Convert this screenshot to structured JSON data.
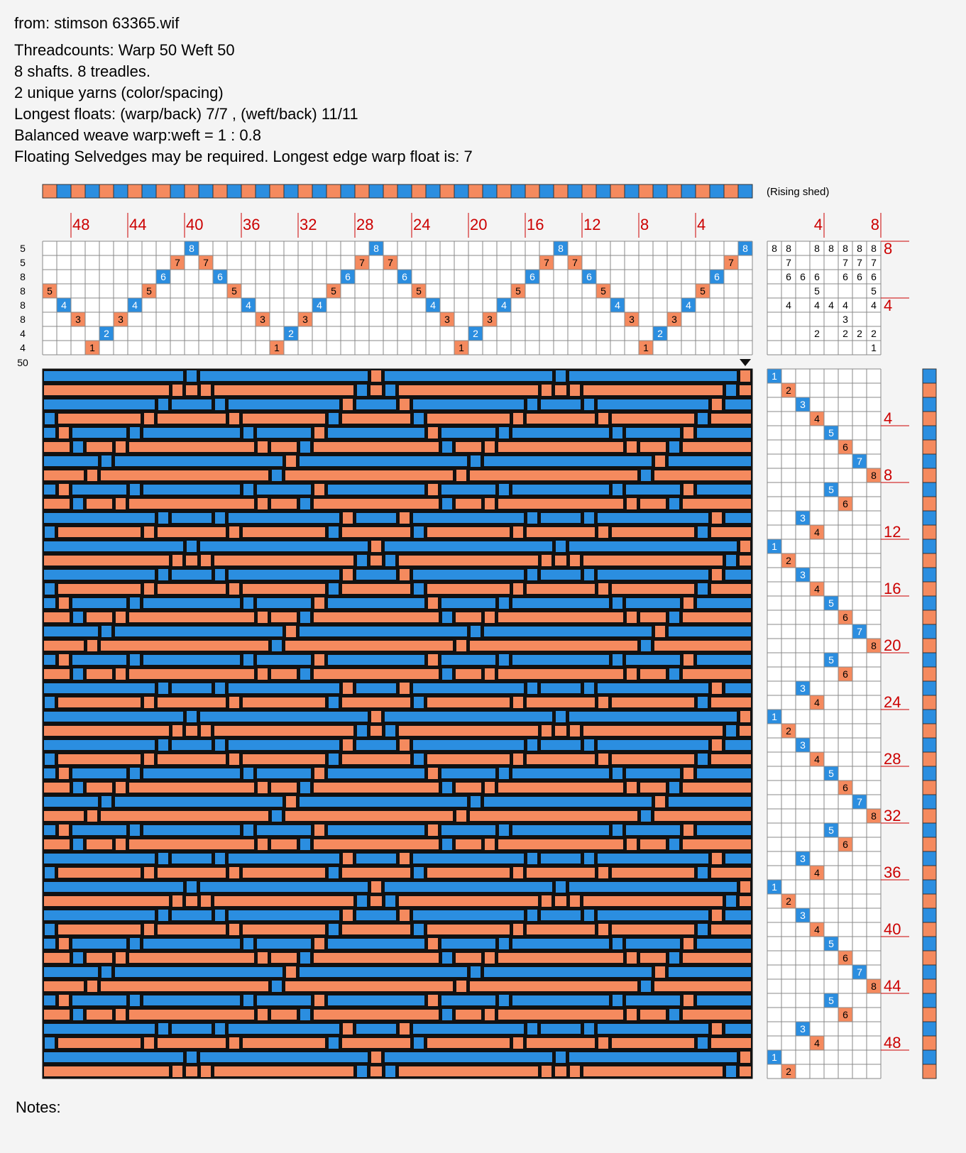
{
  "header": {
    "source": "from:  stimson 63365.wif",
    "lines": [
      "Threadcounts: Warp 50  Weft 50",
      "8 shafts. 8 treadles.",
      "2 unique yarns (color/spacing)",
      "Longest floats: (warp/back) 7/7 , (weft/back) 11/11",
      "Balanced weave warp:weft = 1 : 0.8",
      "Floating Selvedges may be required. Longest edge warp float is: 7"
    ]
  },
  "rising_shed_label": "(Rising shed)",
  "notes_label": "Notes:",
  "colors": {
    "blue": "#2b8ee0",
    "orange": "#f58a5e",
    "grid_line": "#888888",
    "number_red": "#cc0000",
    "cell_bg": "#ffffff"
  },
  "chart_data": {
    "type": "weaving-draft",
    "warp_count": 50,
    "weft_count": 50,
    "shafts": 8,
    "treadles": 8,
    "threading_labels": [
      "48",
      "44",
      "40",
      "36",
      "32",
      "28",
      "24",
      "20",
      "16",
      "12",
      "8",
      "4"
    ],
    "treadle_labels": [
      "4",
      "8"
    ],
    "treadling_labels": [
      "4",
      "8",
      "12",
      "16",
      "20",
      "24",
      "28",
      "32",
      "36",
      "40",
      "44",
      "48"
    ],
    "tieup_side_labels": [
      "8",
      "4"
    ],
    "shaft_counts": [
      "5",
      "5",
      "8",
      "8",
      "8",
      "8",
      "4",
      "4"
    ],
    "weft_total_label": "50",
    "threading": [
      8,
      7,
      6,
      5,
      4,
      3,
      2,
      1,
      3,
      4,
      5,
      6,
      7,
      8,
      7,
      6,
      5,
      4,
      3,
      2,
      1,
      3,
      4,
      5,
      6,
      7,
      8,
      7,
      6,
      5,
      4,
      3,
      2,
      1,
      3,
      4,
      5,
      6,
      7,
      8,
      7,
      6,
      5,
      4,
      3,
      2,
      1,
      3,
      4,
      5
    ],
    "treadling": [
      1,
      2,
      3,
      4,
      5,
      6,
      7,
      8,
      5,
      6,
      3,
      4,
      1,
      2,
      3,
      4,
      5,
      6,
      7,
      8,
      5,
      6,
      3,
      4,
      1,
      2,
      3,
      4,
      5,
      6,
      7,
      8,
      5,
      6,
      3,
      4,
      1,
      2,
      3,
      4,
      5,
      6,
      7,
      8,
      5,
      6,
      3,
      4,
      1,
      2
    ],
    "tieup": [
      [
        "8",
        "8",
        "",
        "8",
        "8",
        "8",
        "8",
        "8"
      ],
      [
        "",
        "7",
        "",
        "",
        "",
        "7",
        "7",
        "7"
      ],
      [
        "",
        "6",
        "6",
        "6",
        "",
        "6",
        "6",
        "6"
      ],
      [
        "",
        "",
        "",
        "5",
        "",
        "",
        "",
        "5"
      ],
      [
        "",
        "4",
        "",
        "4",
        "4",
        "4",
        "",
        "4"
      ],
      [
        "",
        "",
        "",
        "",
        "",
        "3",
        "",
        ""
      ],
      [
        "",
        "",
        "",
        "2",
        "",
        "2",
        "2",
        "2"
      ],
      [
        "",
        "",
        "",
        "",
        "",
        "",
        "",
        "1"
      ]
    ],
    "warp_colors": "OBOBOBOBOBOBOBOBOBOBOBOBOBOBOBOBOBOBOBOBOBOBOBOBOB",
    "weft_colors": "BOBOBOBOBOBOBOBOBOBOBOBOBOBOBOBOBOBOBOBOBOBOBOBOBO",
    "blue_shafts": [
      8,
      6,
      4,
      2
    ],
    "blue_treadles": [
      1,
      3,
      5,
      7
    ]
  }
}
